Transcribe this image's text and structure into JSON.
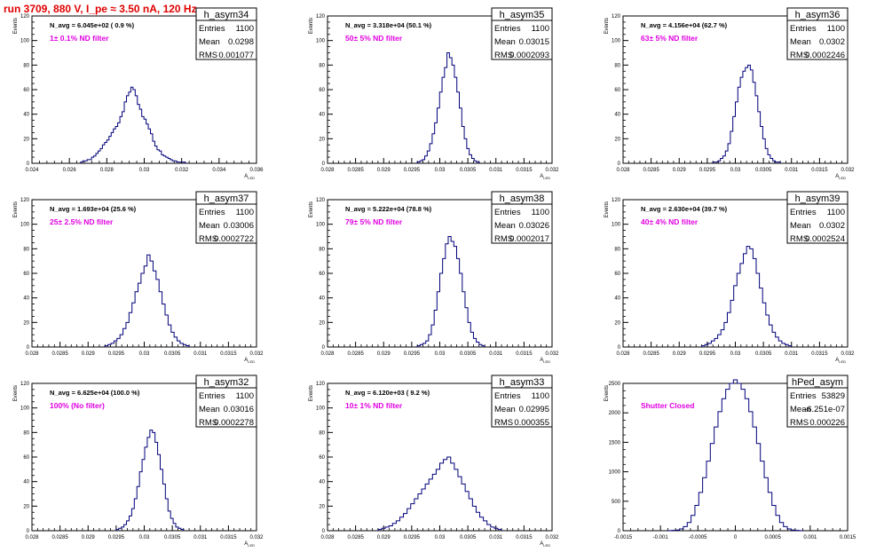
{
  "header": {
    "run_title": "run 3709,   880 V, I_pe ≈ 3.50 nA, 120 Hz"
  },
  "stat_labels": {
    "entries": "Entries",
    "mean": "Mean",
    "rms": "RMS"
  },
  "colors": {
    "histogram": "#00007a",
    "annotation": "#e000e0",
    "title": "#e00000"
  },
  "chart_data": [
    {
      "type": "histogram",
      "name": "h_asym34",
      "ylabel": "Events",
      "xlabel": "A_LED",
      "xlim": [
        0.024,
        0.036
      ],
      "ylim": [
        0,
        120
      ],
      "xticks": [
        "0.024",
        "0.026",
        "0.028",
        "0.03",
        "0.032",
        "0.034",
        "0.036"
      ],
      "yticks": [
        "0",
        "20",
        "40",
        "60",
        "80",
        "100",
        "120"
      ],
      "navg": "N_avg = 6.045e+02 ( 0.9 %)",
      "filter": "1± 0.1% ND filter",
      "stats": {
        "entries": "1100",
        "mean": "0.0298",
        "rms": "0.001077"
      },
      "bins": [
        0.0266,
        0.0322
      ],
      "values": [
        1,
        2,
        2,
        3,
        3,
        5,
        6,
        8,
        10,
        12,
        15,
        17,
        19,
        22,
        25,
        28,
        30,
        33,
        38,
        42,
        50,
        55,
        58,
        62,
        60,
        55,
        48,
        44,
        38,
        36,
        32,
        28,
        24,
        18,
        14,
        11,
        10,
        7,
        6,
        5,
        4,
        3,
        2,
        2,
        1,
        1,
        1,
        1
      ]
    },
    {
      "type": "histogram",
      "name": "h_asym35",
      "ylabel": "Events",
      "xlabel": "A_LED",
      "xlim": [
        0.028,
        0.032
      ],
      "ylim": [
        0,
        120
      ],
      "xticks": [
        "0.028",
        "0.0285",
        "0.029",
        "0.0295",
        "0.03",
        "0.0305",
        "0.031",
        "0.0315",
        "0.032"
      ],
      "yticks": [
        "0",
        "20",
        "40",
        "60",
        "80",
        "100",
        "120"
      ],
      "navg": "N_avg = 3.318e+04 (50.1 %)",
      "filter": "50± 5% ND filter",
      "stats": {
        "entries": "1100",
        "mean": "0.03015",
        "rms": "0.0002093"
      },
      "bins": [
        0.0296,
        0.0307
      ],
      "values": [
        1,
        2,
        3,
        6,
        10,
        16,
        24,
        33,
        45,
        58,
        70,
        78,
        90,
        86,
        80,
        70,
        58,
        45,
        30,
        20,
        12,
        7,
        4,
        2,
        1
      ]
    },
    {
      "type": "histogram",
      "name": "h_asym36",
      "ylabel": "Events",
      "xlabel": "A_LED",
      "xlim": [
        0.028,
        0.032
      ],
      "ylim": [
        0,
        120
      ],
      "xticks": [
        "0.028",
        "0.0285",
        "0.029",
        "0.0295",
        "0.03",
        "0.0305",
        "0.031",
        "0.0315",
        "0.032"
      ],
      "yticks": [
        "0",
        "20",
        "40",
        "60",
        "80",
        "100",
        "120"
      ],
      "navg": "N_avg = 4.156e+04 (62.7 %)",
      "filter": "63± 5% ND filter",
      "stats": {
        "entries": "1100",
        "mean": "0.0302",
        "rms": "0.0002246"
      },
      "bins": [
        0.0296,
        0.0308
      ],
      "values": [
        1,
        1,
        2,
        4,
        6,
        10,
        16,
        26,
        38,
        50,
        62,
        70,
        75,
        78,
        80,
        76,
        66,
        55,
        42,
        30,
        20,
        12,
        7,
        4,
        2,
        1,
        1
      ]
    },
    {
      "type": "histogram",
      "name": "h_asym37",
      "ylabel": "Events",
      "xlabel": "A_LED",
      "xlim": [
        0.028,
        0.032
      ],
      "ylim": [
        0,
        120
      ],
      "xticks": [
        "0.028",
        "0.0285",
        "0.029",
        "0.0295",
        "0.03",
        "0.0305",
        "0.031",
        "0.0315",
        "0.032"
      ],
      "yticks": [
        "0",
        "20",
        "40",
        "60",
        "80",
        "100",
        "120"
      ],
      "navg": "N_avg = 1.693e+04 (25.6 %)",
      "filter": "25± 2.5% ND filter",
      "stats": {
        "entries": "1100",
        "mean": "0.03006",
        "rms": "0.0002722"
      },
      "bins": [
        0.0293,
        0.0308
      ],
      "values": [
        1,
        2,
        3,
        5,
        7,
        10,
        15,
        20,
        28,
        36,
        45,
        52,
        60,
        66,
        75,
        70,
        62,
        55,
        45,
        35,
        26,
        18,
        12,
        8,
        5,
        3,
        2,
        1
      ]
    },
    {
      "type": "histogram",
      "name": "h_asym38",
      "ylabel": "Events",
      "xlabel": "A_LED",
      "xlim": [
        0.028,
        0.032
      ],
      "ylim": [
        0,
        120
      ],
      "xticks": [
        "0.028",
        "0.0285",
        "0.029",
        "0.0295",
        "0.03",
        "0.0305",
        "0.031",
        "0.0315",
        "0.032"
      ],
      "yticks": [
        "0",
        "20",
        "40",
        "60",
        "80",
        "100",
        "120"
      ],
      "navg": "N_avg = 5.222e+04 (78.8 %)",
      "filter": "79± 5% ND filter",
      "stats": {
        "entries": "1100",
        "mean": "0.03026",
        "rms": "0.0002017"
      },
      "bins": [
        0.0296,
        0.0308
      ],
      "values": [
        1,
        2,
        3,
        5,
        10,
        18,
        30,
        45,
        60,
        72,
        84,
        90,
        86,
        82,
        72,
        60,
        45,
        32,
        20,
        12,
        7,
        4,
        2,
        1
      ]
    },
    {
      "type": "histogram",
      "name": "h_asym39",
      "ylabel": "Events",
      "xlabel": "A_LED",
      "xlim": [
        0.028,
        0.032
      ],
      "ylim": [
        0,
        120
      ],
      "xticks": [
        "0.028",
        "0.0285",
        "0.029",
        "0.0295",
        "0.03",
        "0.0305",
        "0.031",
        "0.0315",
        "0.032"
      ],
      "yticks": [
        "0",
        "20",
        "40",
        "60",
        "80",
        "100",
        "120"
      ],
      "navg": "N_avg = 2.630e+04 (39.7 %)",
      "filter": "40± 4% ND filter",
      "stats": {
        "entries": "1100",
        "mean": "0.0302",
        "rms": "0.0002524"
      },
      "bins": [
        0.0294,
        0.031
      ],
      "values": [
        1,
        2,
        3,
        5,
        7,
        10,
        14,
        20,
        28,
        38,
        50,
        60,
        68,
        76,
        82,
        80,
        72,
        60,
        48,
        36,
        26,
        18,
        12,
        8,
        5,
        3,
        2,
        1
      ]
    },
    {
      "type": "histogram",
      "name": "h_asym32",
      "ylabel": "Events",
      "xlabel": "A_LED",
      "xlim": [
        0.028,
        0.032
      ],
      "ylim": [
        0,
        120
      ],
      "xticks": [
        "0.028",
        "0.0285",
        "0.029",
        "0.0295",
        "0.03",
        "0.0305",
        "0.031",
        "0.0315",
        "0.032"
      ],
      "yticks": [
        "0",
        "20",
        "40",
        "60",
        "80",
        "100",
        "120"
      ],
      "navg": "N_avg = 6.625e+04 (100.0 %)",
      "filter": "100% (No filter)",
      "stats": {
        "entries": "1100",
        "mean": "0.03016",
        "rms": "0.0002278"
      },
      "bins": [
        0.0295,
        0.0307
      ],
      "values": [
        1,
        2,
        3,
        5,
        8,
        12,
        18,
        26,
        36,
        48,
        58,
        68,
        76,
        82,
        80,
        72,
        62,
        50,
        38,
        26,
        16,
        10,
        6,
        3,
        2,
        1
      ]
    },
    {
      "type": "histogram",
      "name": "h_asym33",
      "ylabel": "Events",
      "xlabel": "A_LED",
      "xlim": [
        0.028,
        0.032
      ],
      "ylim": [
        0,
        120
      ],
      "xticks": [
        "0.028",
        "0.0285",
        "0.029",
        "0.0295",
        "0.03",
        "0.0305",
        "0.031",
        "0.0315",
        "0.032"
      ],
      "yticks": [
        "0",
        "20",
        "40",
        "60",
        "80",
        "100",
        "120"
      ],
      "navg": "N_avg = 6.120e+03 ( 9.2 %)",
      "filter": "10± 1% ND filter",
      "stats": {
        "entries": "1100",
        "mean": "0.02995",
        "rms": "0.000355"
      },
      "bins": [
        0.0289,
        0.0311
      ],
      "values": [
        1,
        2,
        3,
        4,
        6,
        8,
        11,
        14,
        18,
        22,
        26,
        30,
        34,
        38,
        42,
        46,
        50,
        55,
        58,
        60,
        55,
        50,
        44,
        38,
        32,
        26,
        20,
        15,
        11,
        8,
        5,
        3,
        2,
        1
      ]
    },
    {
      "type": "histogram",
      "name": "hPed_asym",
      "ylabel": "Events",
      "xlabel": "",
      "xlim": [
        -0.0015,
        0.0015
      ],
      "ylim": [
        0,
        2500
      ],
      "xticks": [
        "-0.0015",
        "-0.001",
        "-0.0005",
        "0",
        "0.0005",
        "0.001",
        "0.0015"
      ],
      "yticks": [
        "0",
        "500",
        "1000",
        "1500",
        "2000",
        "2500"
      ],
      "navg": "",
      "filter": "Shutter Closed",
      "stats": {
        "entries": "53829",
        "mean": "-6.251e-07",
        "rms": "0.000226"
      },
      "bins": [
        -0.0009,
        0.0009
      ],
      "values": [
        2,
        5,
        12,
        30,
        70,
        140,
        260,
        430,
        650,
        900,
        1180,
        1480,
        1760,
        2020,
        2240,
        2400,
        2500,
        2560,
        2500,
        2400,
        2240,
        2020,
        1760,
        1480,
        1180,
        900,
        650,
        430,
        260,
        140,
        70,
        30,
        12,
        5,
        2
      ]
    }
  ]
}
